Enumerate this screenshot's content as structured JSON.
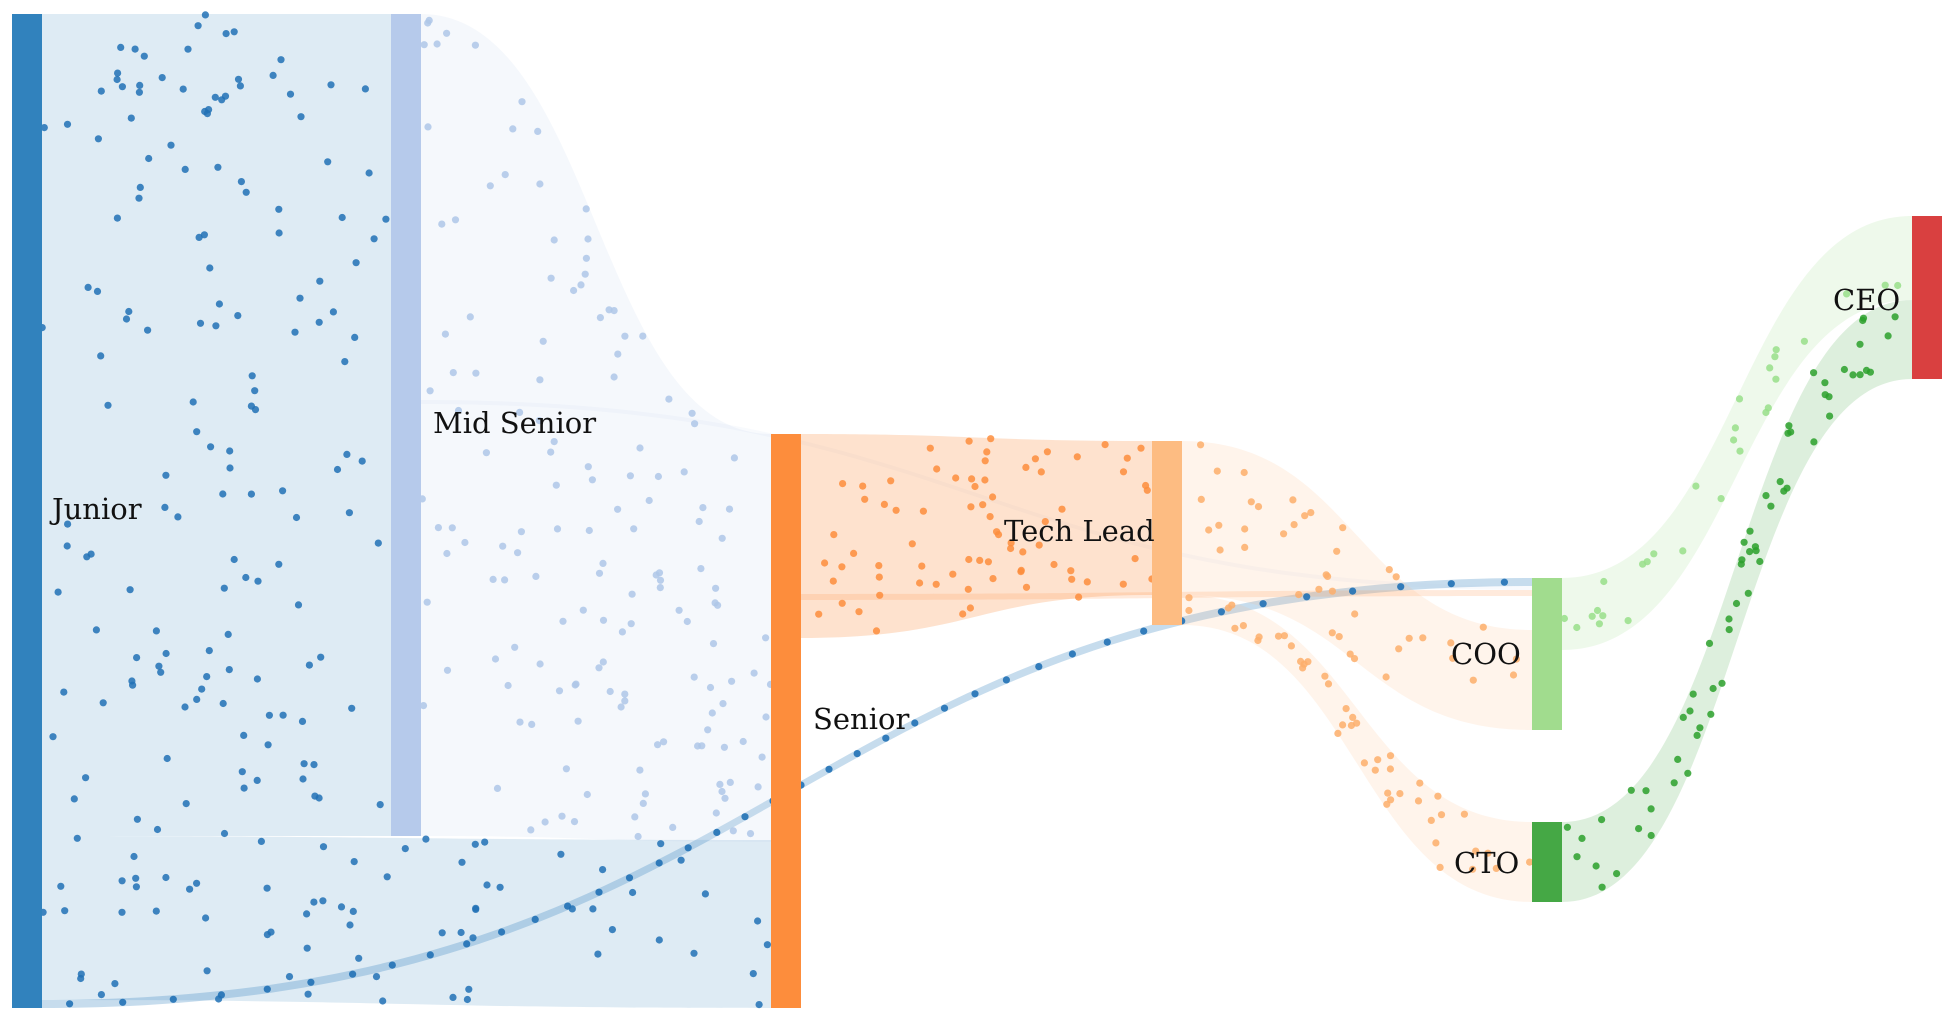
{
  "diagram": {
    "type": "sankey",
    "nodes": [
      {
        "id": "junior",
        "label": "Junior",
        "color": "#3182bd"
      },
      {
        "id": "mid_senior",
        "label": "Mid Senior",
        "color": "#b6caeb"
      },
      {
        "id": "senior",
        "label": "Senior",
        "color": "#fd8d3c"
      },
      {
        "id": "tech_lead",
        "label": "Tech Lead",
        "color": "#fdbc82"
      },
      {
        "id": "coo",
        "label": "COO",
        "color": "#a1dc8e"
      },
      {
        "id": "cto",
        "label": "CTO",
        "color": "#45a845"
      },
      {
        "id": "ceo",
        "label": "CEO",
        "color": "#d94040"
      }
    ],
    "links": [
      {
        "source": "junior",
        "target": "mid_senior",
        "color": "#3182bd",
        "dot_color": "#2171b5"
      },
      {
        "source": "junior",
        "target": "senior",
        "color": "#3182bd",
        "dot_color": "#2171b5"
      },
      {
        "source": "junior",
        "target": "coo",
        "color": "#3182bd",
        "dot_color": "#2171b5"
      },
      {
        "source": "mid_senior",
        "target": "senior",
        "color": "#b6caeb",
        "dot_color": "#aec7e8"
      },
      {
        "source": "mid_senior",
        "target": "coo",
        "color": "#b6caeb",
        "dot_color": "#aec7e8"
      },
      {
        "source": "senior",
        "target": "tech_lead",
        "color": "#fd8d3c",
        "dot_color": "#fd8d3c"
      },
      {
        "source": "senior",
        "target": "coo",
        "color": "#fd8d3c",
        "dot_color": "#fd8d3c"
      },
      {
        "source": "tech_lead",
        "target": "coo",
        "color": "#fdbc82",
        "dot_color": "#fdae6b"
      },
      {
        "source": "tech_lead",
        "target": "cto",
        "color": "#fdbc82",
        "dot_color": "#fdae6b"
      },
      {
        "source": "coo",
        "target": "ceo",
        "color": "#a1dc8e",
        "dot_color": "#98df8a"
      },
      {
        "source": "cto",
        "target": "ceo",
        "color": "#45a845",
        "dot_color": "#2ca02c"
      }
    ]
  }
}
